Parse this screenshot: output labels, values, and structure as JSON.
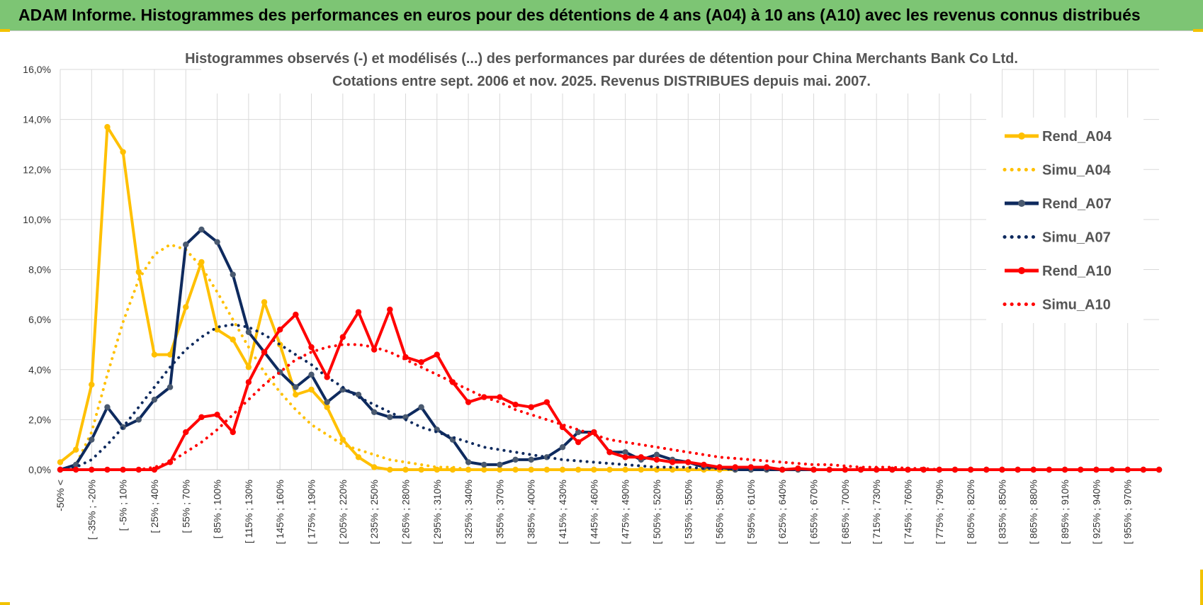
{
  "banner": {
    "title": "ADAM Informe. Histogrammes des performances en euros pour des détentions de 4 ans (A04) à 10 ans (A10) avec les revenus connus distribués"
  },
  "colors": {
    "banner_bg": "#7dc574",
    "a04": "#ffc000",
    "a07": "#0e2a5e",
    "a10": "#ff0000",
    "grid": "#d9d9d9"
  },
  "chart_data": {
    "type": "line",
    "title_line1": "Histogrammes observés (-) et modélisés (...) des performances par durées de détention pour China Merchants Bank Co Ltd.",
    "title_line2": "Cotations entre sept. 2006 et nov. 2025. Revenus DISTRIBUES depuis mai. 2007.",
    "ylim": [
      0,
      16
    ],
    "yticks": [
      "0,0%",
      "2,0%",
      "4,0%",
      "6,0%",
      "8,0%",
      "10,0%",
      "12,0%",
      "14,0%",
      "16,0%"
    ],
    "grid": true,
    "legend_position": "right",
    "x_tick_labels": [
      "-50% <",
      "[ -35% ; -20%",
      "[ -5% ; 10%",
      "[ 25% ; 40%",
      "[ 55% ; 70%",
      "[ 85% ; 100%",
      "[ 115% ; 130%",
      "[ 145% ; 160%",
      "[ 175% ; 190%",
      "[ 205% ; 220%",
      "[ 235% ; 250%",
      "[ 265% ; 280%",
      "[ 295% ; 310%",
      "[ 325% ; 340%",
      "[ 355% ; 370%",
      "[ 385% ; 400%",
      "[ 415% ; 430%",
      "[ 445% ; 460%",
      "[ 475% ; 490%",
      "[ 505% ; 520%",
      "[ 535% ; 550%",
      "[ 565% ; 580%",
      "[ 595% ; 610%",
      "[ 625% ; 640%",
      "[ 655% ; 670%",
      "[ 685% ; 700%",
      "[ 715% ; 730%",
      "[ 745% ; 760%",
      "[ 775% ; 790%",
      "[ 805% ; 820%",
      "[ 835% ; 850%",
      "[ 865% ; 880%",
      "[ 895% ; 910%",
      "[ 925% ; 940%",
      "[ 955% ; 970%"
    ],
    "series": [
      {
        "name": "Rend_A04",
        "style": "solid",
        "color": "#ffc000",
        "values": [
          0.3,
          0.8,
          3.4,
          13.7,
          12.7,
          7.9,
          4.6,
          4.6,
          6.5,
          8.3,
          5.6,
          5.2,
          4.1,
          6.7,
          5.0,
          3.0,
          3.2,
          2.5,
          1.2,
          0.5,
          0.1,
          0,
          0,
          0,
          0,
          0,
          0,
          0,
          0,
          0,
          0,
          0,
          0,
          0,
          0,
          0,
          0,
          0,
          0,
          0,
          0,
          0,
          0,
          0,
          0,
          0,
          0,
          0,
          0,
          0,
          0,
          0,
          0,
          0,
          0,
          0,
          0,
          0,
          0,
          0,
          0,
          0,
          0,
          0,
          0,
          0,
          0,
          0,
          0,
          0,
          0
        ]
      },
      {
        "name": "Simu_A04",
        "style": "dotted",
        "color": "#ffc000",
        "values": [
          0,
          0.2,
          1.5,
          3.8,
          5.9,
          7.6,
          8.6,
          9.0,
          8.8,
          8.1,
          7.1,
          6.0,
          4.9,
          3.9,
          3.1,
          2.4,
          1.8,
          1.4,
          1.0,
          0.8,
          0.6,
          0.4,
          0.3,
          0.2,
          0.1,
          0.1,
          0,
          0,
          0,
          0,
          0,
          0,
          0,
          0,
          0,
          0,
          0,
          0,
          0,
          0,
          0,
          0,
          0,
          0,
          0,
          0,
          0,
          0,
          0,
          0,
          0,
          0,
          0,
          0,
          0,
          0,
          0,
          0,
          0,
          0,
          0,
          0,
          0,
          0,
          0,
          0,
          0,
          0,
          0,
          0,
          0
        ]
      },
      {
        "name": "Rend_A07",
        "style": "solid",
        "color": "#0e2a5e",
        "values": [
          0,
          0.2,
          1.2,
          2.5,
          1.7,
          2.0,
          2.8,
          3.3,
          9.0,
          9.6,
          9.1,
          7.8,
          5.5,
          4.7,
          3.9,
          3.3,
          3.8,
          2.7,
          3.2,
          3.0,
          2.3,
          2.1,
          2.1,
          2.5,
          1.6,
          1.2,
          0.3,
          0.2,
          0.2,
          0.4,
          0.4,
          0.5,
          0.9,
          1.5,
          1.5,
          0.7,
          0.7,
          0.4,
          0.6,
          0.4,
          0.3,
          0.1,
          0.1,
          0,
          0,
          0,
          0,
          0,
          0,
          0,
          0,
          0,
          0,
          0,
          0,
          0,
          0,
          0,
          0,
          0,
          0,
          0,
          0,
          0,
          0,
          0,
          0,
          0,
          0,
          0,
          0
        ]
      },
      {
        "name": "Simu_A07",
        "style": "dotted",
        "color": "#0e2a5e",
        "values": [
          0,
          0.1,
          0.4,
          1.0,
          1.7,
          2.5,
          3.3,
          4.1,
          4.8,
          5.3,
          5.7,
          5.8,
          5.7,
          5.4,
          5.0,
          4.6,
          4.2,
          3.7,
          3.3,
          2.9,
          2.6,
          2.3,
          2.0,
          1.7,
          1.5,
          1.3,
          1.1,
          0.9,
          0.8,
          0.7,
          0.6,
          0.5,
          0.4,
          0.35,
          0.3,
          0.25,
          0.2,
          0.15,
          0.1,
          0.1,
          0.1,
          0.05,
          0.05,
          0,
          0,
          0,
          0,
          0,
          0,
          0,
          0,
          0,
          0,
          0,
          0,
          0,
          0,
          0,
          0,
          0,
          0,
          0,
          0,
          0,
          0,
          0,
          0,
          0,
          0,
          0,
          0
        ]
      },
      {
        "name": "Rend_A10",
        "style": "solid",
        "color": "#ff0000",
        "values": [
          0,
          0,
          0,
          0,
          0,
          0,
          0,
          0.3,
          1.5,
          2.1,
          2.2,
          1.5,
          3.5,
          4.7,
          5.6,
          6.2,
          4.9,
          3.7,
          5.3,
          6.3,
          4.8,
          6.4,
          4.5,
          4.3,
          4.6,
          3.5,
          2.7,
          2.9,
          2.9,
          2.6,
          2.5,
          2.7,
          1.7,
          1.1,
          1.5,
          0.7,
          0.5,
          0.5,
          0.4,
          0.3,
          0.3,
          0.2,
          0.1,
          0.1,
          0.1,
          0.1,
          0,
          0.05,
          0,
          0,
          0,
          0,
          0,
          0,
          0,
          0,
          0,
          0,
          0,
          0,
          0,
          0,
          0,
          0,
          0,
          0,
          0,
          0,
          0,
          0,
          0
        ]
      },
      {
        "name": "Simu_A10",
        "style": "dotted",
        "color": "#ff0000",
        "values": [
          0,
          0,
          0,
          0,
          0,
          0,
          0.1,
          0.3,
          0.7,
          1.1,
          1.6,
          2.2,
          2.8,
          3.4,
          3.9,
          4.4,
          4.7,
          4.9,
          5.0,
          5.0,
          4.9,
          4.7,
          4.4,
          4.1,
          3.8,
          3.5,
          3.2,
          2.9,
          2.7,
          2.4,
          2.2,
          2.0,
          1.8,
          1.6,
          1.4,
          1.2,
          1.1,
          1.0,
          0.9,
          0.8,
          0.7,
          0.6,
          0.5,
          0.45,
          0.4,
          0.35,
          0.3,
          0.25,
          0.2,
          0.2,
          0.15,
          0.1,
          0.1,
          0.1,
          0.05,
          0.05,
          0,
          0,
          0,
          0,
          0,
          0,
          0,
          0,
          0,
          0,
          0,
          0,
          0,
          0,
          0
        ]
      }
    ]
  }
}
